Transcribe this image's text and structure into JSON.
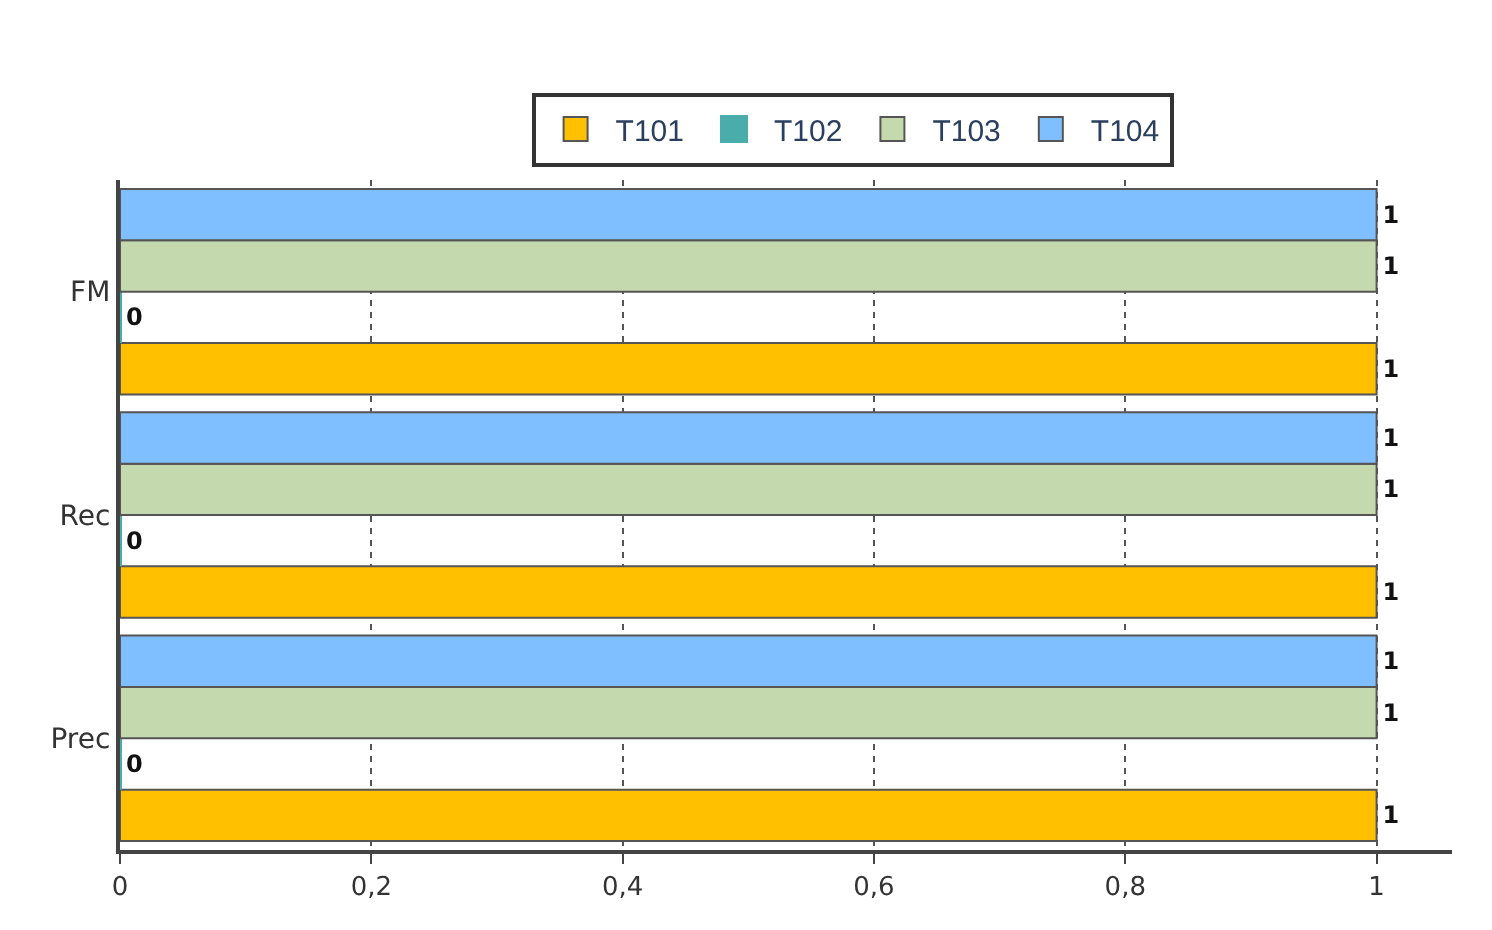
{
  "chart_data": {
    "type": "bar",
    "orientation": "horizontal",
    "categories": [
      "FM",
      "Rec",
      "Prec"
    ],
    "series": [
      {
        "name": "T101",
        "color": "#ffc000",
        "values": [
          1,
          1,
          1
        ]
      },
      {
        "name": "T102",
        "color": "#4bacac",
        "values": [
          0,
          0,
          0
        ]
      },
      {
        "name": "T103",
        "color": "#c4d9ad",
        "values": [
          1,
          1,
          1
        ]
      },
      {
        "name": "T104",
        "color": "#80bfff",
        "values": [
          1,
          1,
          1
        ]
      }
    ],
    "xlim": [
      0,
      1.06
    ],
    "xticks": [
      0,
      {
        "value": 0.2,
        "label": "0,2"
      },
      {
        "value": 0.4,
        "label": "0,4"
      },
      {
        "value": 0.6,
        "label": "0,6"
      },
      {
        "value": 0.8,
        "label": "0,8"
      },
      1
    ],
    "grid": "x",
    "legend": "top",
    "data_labels": true
  }
}
